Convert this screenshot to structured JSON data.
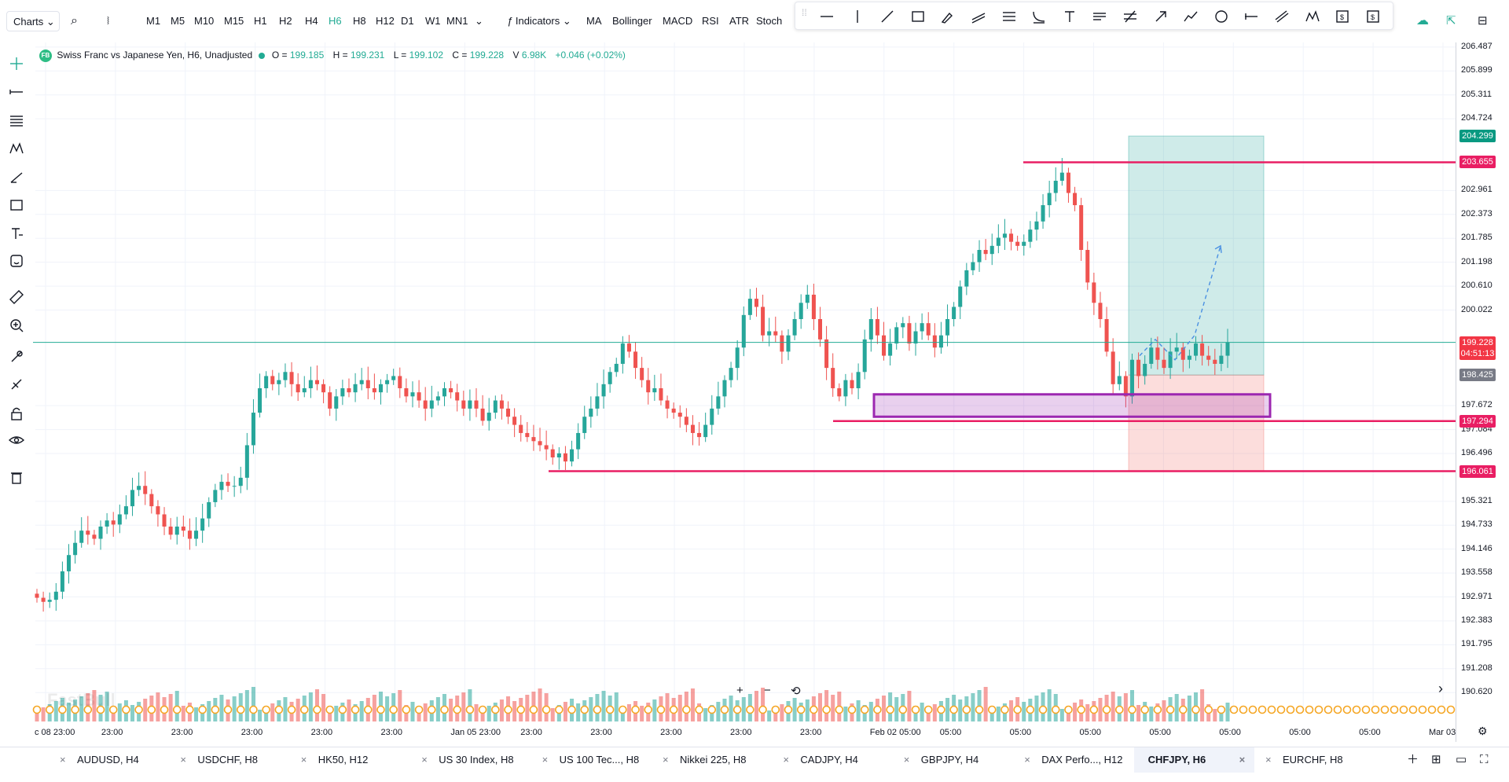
{
  "topbar": {
    "charts_label": "Charts",
    "search_icon": "search-icon",
    "chart_type_icon": "candles-icon",
    "timeframes": [
      "M1",
      "M5",
      "M10",
      "M15",
      "H1",
      "H2",
      "H4",
      "H6",
      "H8",
      "H12",
      "D1",
      "W1",
      "MN1"
    ],
    "active_timeframe": "H6",
    "indicators_label": "Indicators",
    "quick_indicators": [
      "MA",
      "Bollinger",
      "MACD",
      "RSI",
      "ATR",
      "Stoch"
    ],
    "right_icons": [
      "cloud-icon",
      "share-icon",
      "panel-icon"
    ]
  },
  "drawing_tools": [
    "horizontal-line-icon",
    "vertical-line-icon",
    "trend-line-icon",
    "rectangle-icon",
    "brush-icon",
    "channel-icon",
    "fib-icon",
    "fib-arc-icon",
    "text-icon",
    "pitchfork-icon",
    "gann-icon",
    "arrow-icon",
    "path-icon",
    "circle-icon",
    "range-icon",
    "parallel-icon",
    "pattern-icon",
    "long-position-icon",
    "short-position-icon"
  ],
  "left_tools": [
    "crosshair-icon",
    "line-icon",
    "fib-levels-icon",
    "pattern-icon",
    "brush-icon",
    "rectangle-icon",
    "text-icon",
    "emoji-icon",
    "ruler-icon",
    "zoom-in-icon",
    "magnet-icon",
    "lock-draw-icon",
    "lock-icon",
    "eye-icon",
    "trash-icon"
  ],
  "legend": {
    "badge": "FB",
    "symbol": "Swiss Franc vs Japanese Yen, H6, Unadjusted",
    "open_k": "O =",
    "open_v": "199.185",
    "high_k": "H =",
    "high_v": "199.231",
    "low_k": "L =",
    "low_v": "199.102",
    "close_k": "C =",
    "close_v": "199.228",
    "vol_k": "V",
    "vol_v": "6.98K",
    "change": "+0.046 (+0.02%)"
  },
  "chart_data": {
    "type": "candlestick",
    "symbol": "CHFJPY",
    "timeframe": "H6",
    "y_ticks": [
      "206.487",
      "205.899",
      "205.311",
      "204.724",
      "202.961",
      "202.373",
      "201.785",
      "201.198",
      "200.610",
      "200.022",
      "197.672",
      "197.084",
      "196.496",
      "195.321",
      "194.733",
      "194.146",
      "193.558",
      "192.971",
      "192.383",
      "191.795",
      "191.208",
      "190.620"
    ],
    "ylim": [
      190.45,
      206.6
    ],
    "x_ticks": [
      "c 08 23:00",
      "23:00",
      "23:00",
      "23:00",
      "23:00",
      "23:00",
      "Jan 05 23:00",
      "23:00",
      "23:00",
      "23:00",
      "23:00",
      "23:00",
      "Feb 02 05:00",
      "05:00",
      "05:00",
      "05:00",
      "05:00",
      "05:00",
      "05:00",
      "05:00",
      "Mar 03"
    ],
    "price_tags": [
      {
        "price": "204.299",
        "color": "#089981"
      },
      {
        "price": "203.655",
        "color": "#e91e63"
      },
      {
        "price": "199.228",
        "sub": "04:51:13",
        "color": "#f23645"
      },
      {
        "price": "198.425",
        "color": "#787b86"
      },
      {
        "price": "197.294",
        "color": "#e91e63"
      },
      {
        "price": "196.061",
        "color": "#e91e63"
      }
    ],
    "horizontal_lines": [
      {
        "price": 203.655,
        "color": "#e91e63"
      },
      {
        "price": 197.294,
        "color": "#e91e63"
      },
      {
        "price": 196.061,
        "color": "#e91e63"
      },
      {
        "price": 199.228,
        "color": "#22ab94"
      }
    ],
    "position": {
      "entry": 198.425,
      "target": 204.299,
      "stop": 196.061
    },
    "zone": {
      "top": 197.95,
      "bottom": 197.4,
      "color": "#9c27b0"
    },
    "closes": [
      192.95,
      192.85,
      192.9,
      193.1,
      193.6,
      194.0,
      194.3,
      194.6,
      194.5,
      194.4,
      194.7,
      194.85,
      194.75,
      195.0,
      195.2,
      195.6,
      195.7,
      195.5,
      195.2,
      195.0,
      194.7,
      194.5,
      194.7,
      194.6,
      194.4,
      194.6,
      194.9,
      195.3,
      195.6,
      195.8,
      195.7,
      195.7,
      195.9,
      196.7,
      197.5,
      198.1,
      198.4,
      198.2,
      198.3,
      198.5,
      198.2,
      198.0,
      198.1,
      198.3,
      198.2,
      198.0,
      197.6,
      197.9,
      198.1,
      198.0,
      198.2,
      198.3,
      198.1,
      198.0,
      198.2,
      198.3,
      198.4,
      198.1,
      197.9,
      198.0,
      197.8,
      197.6,
      197.8,
      197.9,
      198.1,
      198.0,
      197.8,
      197.6,
      197.8,
      197.6,
      197.3,
      197.5,
      197.8,
      197.6,
      197.4,
      197.2,
      197.0,
      196.9,
      196.8,
      196.7,
      196.6,
      196.4,
      196.5,
      196.3,
      196.6,
      197.0,
      197.4,
      197.6,
      197.9,
      198.2,
      198.5,
      198.7,
      199.2,
      199.0,
      198.6,
      198.3,
      198.0,
      198.1,
      197.8,
      197.6,
      197.5,
      197.4,
      197.2,
      197.0,
      196.9,
      197.2,
      197.6,
      197.9,
      198.3,
      198.6,
      199.1,
      199.9,
      200.3,
      200.1,
      199.4,
      199.5,
      199.4,
      199.0,
      199.4,
      199.8,
      200.2,
      200.4,
      199.8,
      199.3,
      198.6,
      198.1,
      197.9,
      198.3,
      198.1,
      198.5,
      199.3,
      199.8,
      199.4,
      198.9,
      199.2,
      199.6,
      199.7,
      199.2,
      199.5,
      199.7,
      199.4,
      199.1,
      199.4,
      199.8,
      200.1,
      200.6,
      201.0,
      201.2,
      201.5,
      201.4,
      201.6,
      201.8,
      201.9,
      201.7,
      201.6,
      201.7,
      202.0,
      202.2,
      202.6,
      202.9,
      203.2,
      203.4,
      202.9,
      202.6,
      201.5,
      200.7,
      200.2,
      199.8,
      199.0,
      198.2,
      198.4,
      197.9,
      198.8,
      198.4,
      198.7,
      199.1,
      198.8,
      198.6,
      199.0,
      199.1,
      198.8,
      198.9,
      199.2,
      198.9,
      198.8,
      198.7,
      198.9,
      199.23
    ],
    "annotations": [
      "long position",
      "dashed projection arrow"
    ]
  },
  "chart_controls": {
    "zoom_in": "+",
    "zoom_out": "−",
    "reset": "⟲",
    "scroll_right": "›",
    "watermark": "FastBull"
  },
  "tabs": [
    {
      "label": "AUDUSD, H4"
    },
    {
      "label": "USDCHF, H8"
    },
    {
      "label": "HK50, H12"
    },
    {
      "label": "US 30 Index, H8"
    },
    {
      "label": "US 100 Tec..., H8"
    },
    {
      "label": "Nikkei 225, H8"
    },
    {
      "label": "CADJPY, H4"
    },
    {
      "label": "GBPJPY, H4"
    },
    {
      "label": "DAX Perfo..., H12"
    },
    {
      "label": "CHFJPY, H6",
      "active": true
    },
    {
      "label": "EURCHF, H8"
    }
  ],
  "tab_close": "×",
  "tabbar_icons": [
    "add-icon",
    "layout-icon",
    "window-icon",
    "fullscreen-icon"
  ],
  "colors": {
    "up": "#26a69a",
    "down": "#ef5350",
    "accent": "#22ab94",
    "level": "#e91e63"
  }
}
